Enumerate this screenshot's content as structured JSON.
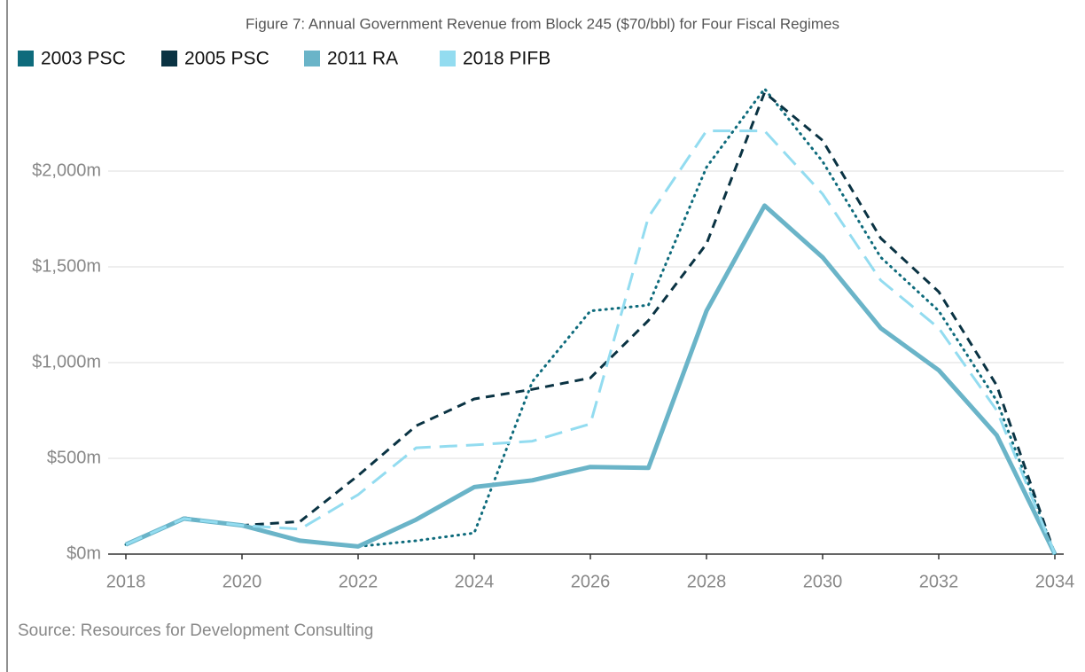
{
  "chart_data": {
    "type": "line",
    "title": "Figure 7: Annual Government Revenue from Block 245 ($70/bbl) for Four Fiscal Regimes",
    "source": "Source: Resources for Development Consulting",
    "x": [
      2018,
      2019,
      2020,
      2021,
      2022,
      2023,
      2024,
      2025,
      2026,
      2027,
      2028,
      2029,
      2030,
      2031,
      2032,
      2033,
      2034
    ],
    "series": [
      {
        "name": "2003 PSC",
        "color": "#0e6b7c",
        "line_style": "dotted",
        "values": [
          50,
          190,
          150,
          70,
          40,
          70,
          110,
          900,
          1270,
          1300,
          2020,
          2430,
          2050,
          1550,
          1270,
          800,
          0
        ]
      },
      {
        "name": "2005 PSC",
        "color": "#0a3343",
        "line_style": "dashed",
        "values": [
          50,
          190,
          150,
          170,
          410,
          670,
          810,
          860,
          920,
          1220,
          1620,
          2410,
          2160,
          1650,
          1370,
          880,
          0
        ]
      },
      {
        "name": "2011 RA",
        "color": "#6ab4c8",
        "line_style": "solid",
        "values": [
          50,
          185,
          150,
          70,
          40,
          180,
          350,
          385,
          455,
          450,
          1270,
          1820,
          1550,
          1180,
          960,
          620,
          0
        ]
      },
      {
        "name": "2018 PIFB",
        "color": "#93dcf0",
        "line_style": "long-dash",
        "values": [
          50,
          185,
          150,
          130,
          310,
          555,
          570,
          590,
          680,
          1760,
          2210,
          2210,
          1880,
          1430,
          1180,
          750,
          0
        ]
      }
    ],
    "xlim": [
      2018,
      2034
    ],
    "xticks": [
      2018,
      2020,
      2022,
      2024,
      2026,
      2028,
      2030,
      2032,
      2034
    ],
    "ylim": [
      0,
      2500
    ],
    "yticks": [
      {
        "value": 0,
        "label": "$0m"
      },
      {
        "value": 500,
        "label": "$500m"
      },
      {
        "value": 1000,
        "label": "$1,000m"
      },
      {
        "value": 1500,
        "label": "$1,500m"
      },
      {
        "value": 2000,
        "label": "$2,000m"
      }
    ],
    "grid": true,
    "legend": "top-left"
  }
}
